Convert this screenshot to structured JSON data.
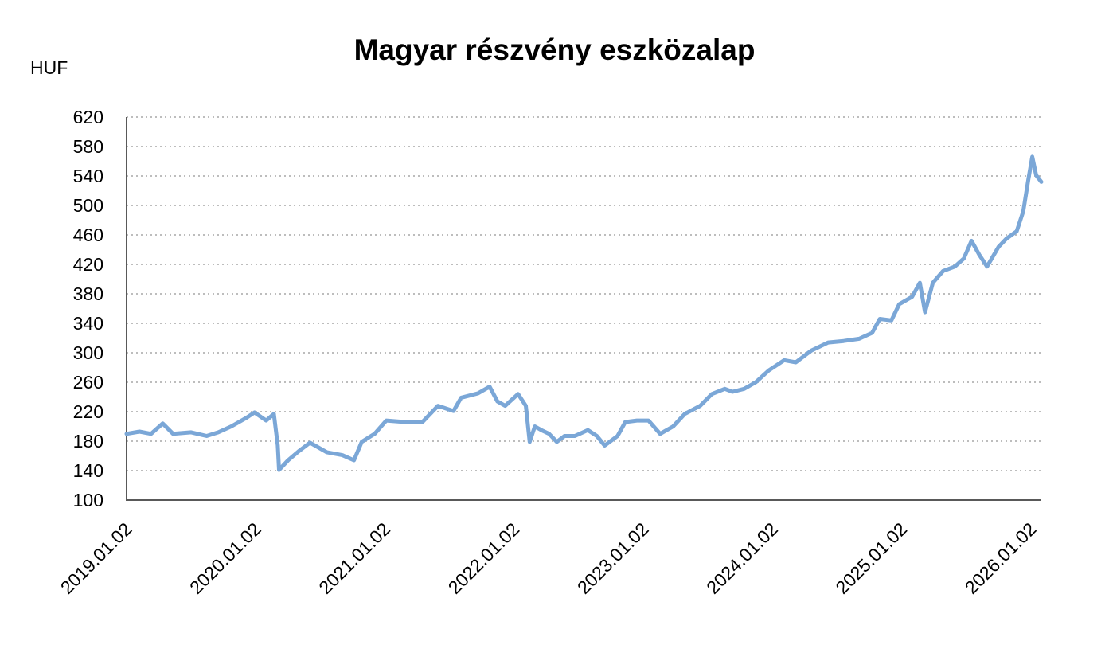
{
  "chart_data": {
    "type": "line",
    "title": "Magyar részvény eszközalap",
    "ylabel": "HUF",
    "xlabel": "",
    "ylim": [
      100,
      620
    ],
    "yticks": [
      100,
      140,
      180,
      220,
      260,
      300,
      340,
      380,
      420,
      460,
      500,
      540,
      580,
      620
    ],
    "xlim": [
      2019.0,
      2026.08
    ],
    "xticks": [
      {
        "t": 2019.0,
        "label": "2019.01.02"
      },
      {
        "t": 2020.0,
        "label": "2020.01.02"
      },
      {
        "t": 2021.0,
        "label": "2021.01.02"
      },
      {
        "t": 2022.0,
        "label": "2022.01.02"
      },
      {
        "t": 2023.0,
        "label": "2023.01.02"
      },
      {
        "t": 2024.0,
        "label": "2024.01.02"
      },
      {
        "t": 2025.0,
        "label": "2025.01.02"
      },
      {
        "t": 2026.0,
        "label": "2026.01.02"
      }
    ],
    "grid": "horizontal-dotted",
    "color": "#7BA7D7",
    "series": [
      {
        "name": "Magyar részvény eszközalap",
        "x": [
          2019.0,
          2019.1,
          2019.19,
          2019.28,
          2019.36,
          2019.5,
          2019.62,
          2019.71,
          2019.81,
          2019.93,
          2019.99,
          2020.08,
          2020.14,
          2020.17,
          2020.18,
          2020.25,
          2020.33,
          2020.42,
          2020.55,
          2020.67,
          2020.76,
          2020.82,
          2020.92,
          2021.01,
          2021.16,
          2021.29,
          2021.41,
          2021.53,
          2021.59,
          2021.72,
          2021.81,
          2021.87,
          2021.93,
          2022.03,
          2022.09,
          2022.12,
          2022.16,
          2022.21,
          2022.27,
          2022.33,
          2022.39,
          2022.47,
          2022.57,
          2022.64,
          2022.7,
          2022.8,
          2022.86,
          2022.95,
          2023.04,
          2023.13,
          2023.23,
          2023.32,
          2023.44,
          2023.53,
          2023.63,
          2023.69,
          2023.78,
          2023.87,
          2023.97,
          2024.09,
          2024.18,
          2024.3,
          2024.43,
          2024.55,
          2024.67,
          2024.77,
          2024.83,
          2024.92,
          2024.98,
          2025.08,
          2025.14,
          2025.18,
          2025.24,
          2025.32,
          2025.41,
          2025.48,
          2025.54,
          2025.6,
          2025.66,
          2025.75,
          2025.81,
          2025.89,
          2025.94,
          2025.98,
          2026.01,
          2026.04,
          2026.08
        ],
        "y": [
          190,
          193,
          190,
          204,
          190,
          192,
          187,
          192,
          200,
          212,
          219,
          208,
          217,
          174,
          141,
          154,
          166,
          178,
          165,
          161,
          154,
          179,
          190,
          208,
          206,
          206,
          228,
          221,
          239,
          245,
          254,
          234,
          228,
          244,
          228,
          179,
          200,
          195,
          190,
          179,
          187,
          187,
          195,
          187,
          174,
          187,
          206,
          208,
          208,
          190,
          200,
          217,
          228,
          244,
          251,
          247,
          251,
          260,
          276,
          290,
          287,
          303,
          314,
          316,
          319,
          327,
          346,
          344,
          366,
          376,
          395,
          355,
          395,
          411,
          417,
          428,
          452,
          433,
          417,
          444,
          455,
          465,
          492,
          536,
          566,
          541,
          532
        ]
      }
    ]
  }
}
